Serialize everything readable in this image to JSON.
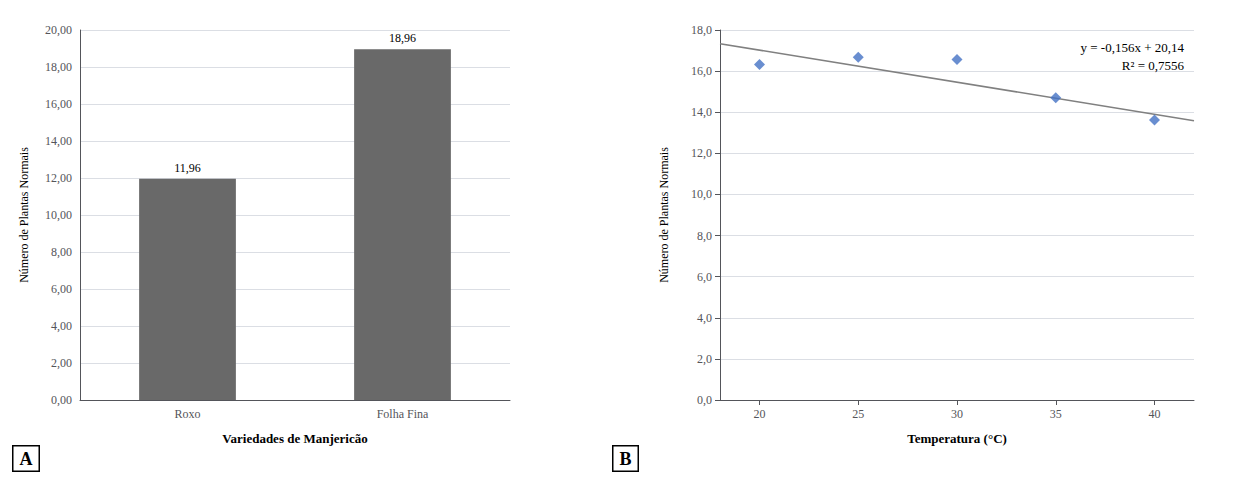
{
  "chart_data": [
    {
      "type": "bar",
      "panel_label": "A",
      "xlabel": "Variedades de Manjericão",
      "ylabel": "Número de Plantas Normais",
      "categories": [
        "Roxo",
        "Folha Fina"
      ],
      "values": [
        11.96,
        18.96
      ],
      "value_labels": [
        "11,96",
        "18,96"
      ],
      "data_labels": true,
      "color": "#696969",
      "ylim": [
        0,
        20
      ],
      "yticks": [
        {
          "value": 0.0,
          "label": "0,00"
        },
        {
          "value": 2.0,
          "label": "2,00"
        },
        {
          "value": 4.0,
          "label": "4,00"
        },
        {
          "value": 6.0,
          "label": "6,00"
        },
        {
          "value": 8.0,
          "label": "8,00"
        },
        {
          "value": 10.0,
          "label": "10,00"
        },
        {
          "value": 12.0,
          "label": "12,00"
        },
        {
          "value": 14.0,
          "label": "14,00"
        },
        {
          "value": 16.0,
          "label": "16,00"
        },
        {
          "value": 18.0,
          "label": "18,00"
        },
        {
          "value": 20.0,
          "label": "20,00"
        }
      ],
      "grid": true
    },
    {
      "type": "scatter",
      "panel_label": "B",
      "xlabel": "Temperatura (°C)",
      "ylabel": "Número de Plantas Normais",
      "annotations": [
        "y = -0,156x + 20,14",
        "R² = 0,7556"
      ],
      "series": [
        {
          "type": "line",
          "x": [
            18,
            42
          ],
          "values": [
            17.332,
            13.588
          ],
          "color": "#808080"
        },
        {
          "type": "scatter",
          "x": [
            20,
            25,
            30,
            35,
            40
          ],
          "values": [
            16.32,
            16.68,
            16.56,
            14.7,
            13.62
          ],
          "color": "#4472C4",
          "marker": "diamond"
        }
      ],
      "xlim": [
        18,
        42
      ],
      "xticks": [
        20,
        25,
        30,
        35,
        40
      ],
      "ylim": [
        0,
        18.0
      ],
      "yticks": [
        {
          "value": 0.0,
          "label": "0,0"
        },
        {
          "value": 2.0,
          "label": "2,0"
        },
        {
          "value": 4.0,
          "label": "4,0"
        },
        {
          "value": 6.0,
          "label": "6,0"
        },
        {
          "value": 8.0,
          "label": "8,0"
        },
        {
          "value": 10.0,
          "label": "10,0"
        },
        {
          "value": 12.0,
          "label": "12,0"
        },
        {
          "value": 14.0,
          "label": "14,0"
        },
        {
          "value": 16.0,
          "label": "16,0"
        },
        {
          "value": 18.0,
          "label": "18,0"
        }
      ],
      "grid": true
    }
  ]
}
